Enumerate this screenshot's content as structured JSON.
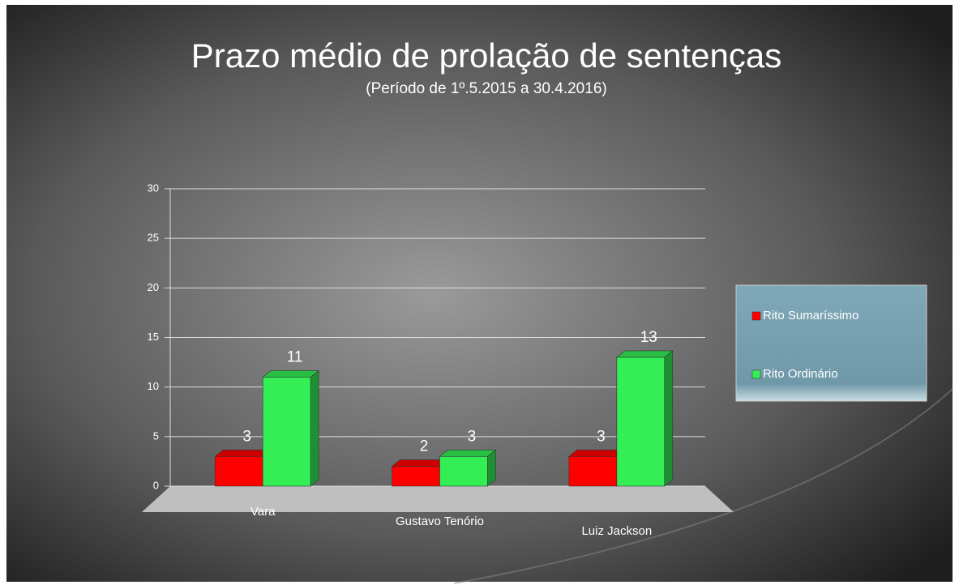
{
  "chart_data": {
    "type": "bar",
    "title": "Prazo médio de prolação de sentenças",
    "subtitle": "(Período de 1º.5.2015  a  30.4.2016)",
    "categories": [
      "Vara",
      "Gustavo Tenório",
      "Luiz Jackson"
    ],
    "series": [
      {
        "name": "Rito Sumaríssimo",
        "color": "#ff0000",
        "values": [
          3,
          2,
          3
        ]
      },
      {
        "name": "Rito Ordinário",
        "color": "#33ee55",
        "values": [
          11,
          3,
          13
        ]
      }
    ],
    "ylim": [
      0,
      30
    ],
    "yticks": [
      0,
      5,
      10,
      15,
      20,
      25,
      30
    ],
    "grid": true,
    "legend": "right"
  }
}
